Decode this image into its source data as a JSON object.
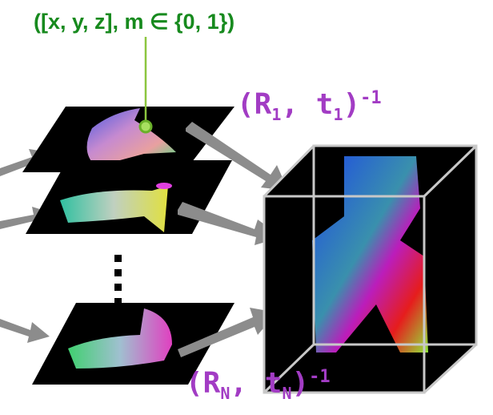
{
  "point_label": "([x, y, z], m ∈ {0, 1})",
  "pose_first": {
    "open": "(R",
    "sub1": "1",
    "mid": ", t",
    "sub2": "1",
    "close": ")",
    "exp": "-1"
  },
  "pose_last": {
    "open": "(R",
    "sub1": "N",
    "mid": ", t",
    "sub2": "N",
    "close": ")",
    "exp": "-1"
  },
  "colors": {
    "label_green": "#178a1e",
    "pose_purple": "#a23cc4",
    "leader_line": "#8cc63f",
    "arrow_gray": "#8c8c8c"
  }
}
